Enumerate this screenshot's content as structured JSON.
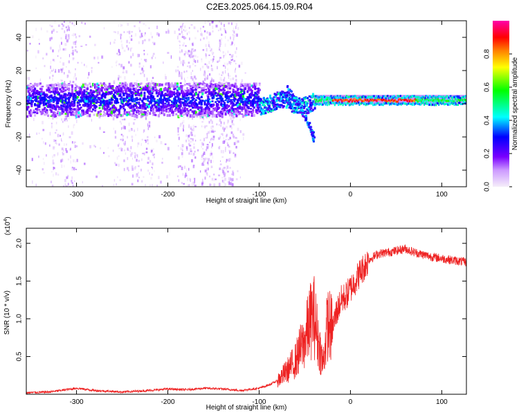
{
  "title": "C2E3.2025.064.15.09.R04",
  "chart_data": [
    {
      "type": "heatmap",
      "name": "spectrogram",
      "xlabel": "Height of straight line (km)",
      "ylabel": "Frequency (Hz)",
      "xlim": [
        -355,
        127
      ],
      "ylim": [
        -50,
        50
      ],
      "xticks": [
        -300,
        -200,
        -100,
        0,
        100
      ],
      "yticks": [
        -40,
        -20,
        0,
        20,
        40
      ],
      "grid": false,
      "colorbar": {
        "label": "Normalized spectral amplitude",
        "range": [
          0,
          1
        ],
        "ticks": [
          "0.0",
          "0.2",
          "0.4",
          "0.6",
          "0.8"
        ],
        "tick_values": [
          0,
          0.2,
          0.4,
          0.6,
          0.8
        ],
        "colors": [
          "#f5eefa",
          "#cc99ff",
          "#7a00ff",
          "#0000ff",
          "#00ffff",
          "#00ff00",
          "#ffff00",
          "#ff8000",
          "#ff0000",
          "#ff00aa"
        ]
      },
      "features": [
        {
          "name": "main band",
          "x_range": [
            -355,
            -100
          ],
          "freq_center": 3,
          "freq_halfwidth": 10,
          "amplitude": 0.2
        },
        {
          "name": "scatter",
          "x_range": [
            -355,
            -115
          ],
          "freq_range": [
            -50,
            50
          ],
          "amplitude": 0.08
        },
        {
          "name": "descending branch",
          "x": [
            -70,
            -58,
            -50,
            -44,
            -40
          ],
          "freq": [
            10,
            0,
            -8,
            -15,
            -22
          ],
          "amplitude": 0.3
        },
        {
          "name": "steady tone",
          "x_range": [
            -40,
            127
          ],
          "freq_center": 2,
          "amplitude": 0.95,
          "peak_x_range": [
            -20,
            70
          ]
        }
      ]
    },
    {
      "type": "line",
      "name": "snr",
      "xlabel": "Height of straight line (km)",
      "ylabel": "SNR (10 * v/v)",
      "multiplier_label": "(x10",
      "multiplier_exponent": "4",
      "xlim": [
        -355,
        127
      ],
      "ylim": [
        0,
        2.2
      ],
      "xticks": [
        -300,
        -200,
        -100,
        0,
        100
      ],
      "yticks": [
        0.5,
        1.0,
        1.5,
        2.0
      ],
      "ytick_labels": [
        "0.5",
        "1.0",
        "1.5",
        "2.0"
      ],
      "grid": false,
      "color": "#ee2222",
      "envelope": {
        "x": [
          -355,
          -330,
          -300,
          -280,
          -250,
          -220,
          -200,
          -180,
          -160,
          -140,
          -120,
          -100,
          -90,
          -80,
          -70,
          -60,
          -55,
          -50,
          -45,
          -40,
          -35,
          -30,
          -25,
          -20,
          -15,
          -10,
          -5,
          0,
          10,
          20,
          30,
          40,
          50,
          60,
          70,
          80,
          90,
          100,
          110,
          127
        ],
        "values": [
          0.02,
          0.03,
          0.08,
          0.05,
          0.03,
          0.05,
          0.07,
          0.06,
          0.08,
          0.07,
          0.05,
          0.08,
          0.12,
          0.18,
          0.3,
          0.45,
          0.6,
          0.7,
          0.95,
          1.05,
          0.7,
          0.4,
          0.95,
          0.85,
          1.1,
          1.25,
          1.3,
          1.4,
          1.6,
          1.78,
          1.86,
          1.88,
          1.9,
          1.93,
          1.88,
          1.85,
          1.82,
          1.8,
          1.78,
          1.75
        ]
      }
    }
  ]
}
